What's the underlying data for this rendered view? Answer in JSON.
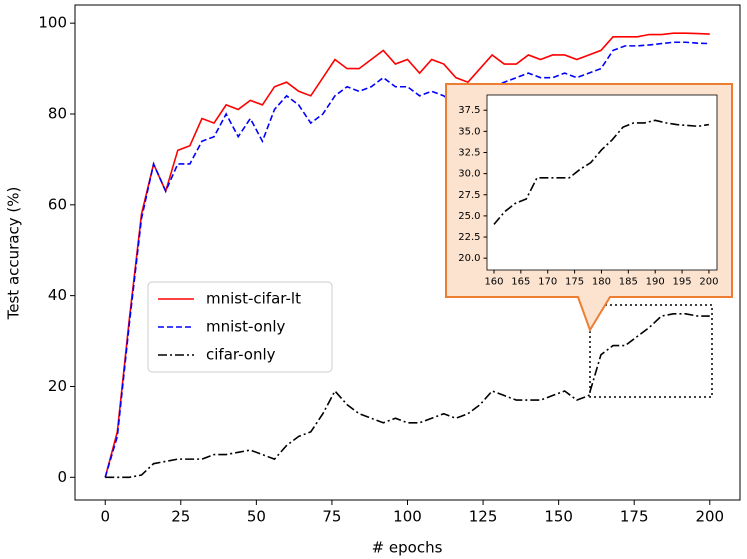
{
  "chart_data": [
    {
      "type": "line",
      "x_label": "# epochs",
      "y_label": "Test accuracy (%)",
      "x": [
        0,
        4,
        8,
        12,
        16,
        20,
        24,
        28,
        32,
        36,
        40,
        44,
        48,
        52,
        56,
        60,
        64,
        68,
        72,
        76,
        80,
        84,
        88,
        92,
        96,
        100,
        104,
        108,
        112,
        116,
        120,
        124,
        128,
        132,
        136,
        140,
        144,
        148,
        152,
        156,
        160,
        164,
        168,
        172,
        176,
        180,
        184,
        188,
        192,
        196,
        200
      ],
      "series": [
        {
          "name": "mnist-cifar-lt",
          "color": "#ff0000",
          "style": "solid",
          "values": [
            0,
            10,
            35,
            58,
            69,
            63,
            72,
            73,
            79,
            78,
            82,
            81,
            83,
            82,
            86,
            87,
            85,
            84,
            88,
            92,
            90,
            90,
            92,
            94,
            91,
            92,
            89,
            92,
            91,
            88,
            87,
            90,
            93,
            91,
            91,
            93,
            92,
            93,
            93,
            92,
            93,
            94,
            97,
            97,
            97,
            97.5,
            97.5,
            97.8,
            97.8,
            97.7,
            97.6
          ]
        },
        {
          "name": "mnist-only",
          "color": "#0000ff",
          "style": "dashed",
          "values": [
            0,
            9,
            34,
            57,
            69,
            63,
            69,
            69,
            74,
            75,
            80,
            75,
            79,
            74,
            81,
            84,
            82,
            78,
            80,
            84,
            86,
            85,
            86,
            88,
            86,
            86,
            84,
            85,
            84,
            82,
            84,
            82,
            86,
            87,
            88,
            89,
            88,
            88,
            89,
            88,
            89,
            90,
            94,
            95,
            95,
            95.2,
            95.5,
            95.8,
            95.8,
            95.6,
            95.5
          ]
        },
        {
          "name": "cifar-only",
          "color": "#000000",
          "style": "dashdot",
          "values": [
            0,
            0,
            0,
            0.5,
            3,
            3.5,
            4,
            4,
            4,
            5,
            5,
            5.5,
            6,
            5,
            4,
            7,
            9,
            10,
            14,
            19,
            16,
            14,
            13,
            12,
            13,
            12,
            12,
            13,
            14,
            13,
            14,
            16,
            19,
            18,
            17,
            17,
            17,
            18,
            19,
            17,
            18,
            27,
            29,
            29,
            31,
            33,
            35.5,
            36,
            36,
            35.5,
            35.5
          ]
        }
      ],
      "xlim": [
        -10,
        210
      ],
      "xticks": [
        0,
        25,
        50,
        75,
        100,
        125,
        150,
        175,
        200
      ],
      "ylim": [
        -5,
        104
      ],
      "yticks": [
        0,
        20,
        40,
        60,
        80,
        100
      ],
      "legend": "center left",
      "grid": false
    },
    {
      "type": "line",
      "x": [
        160,
        162,
        164,
        166,
        168,
        170,
        172,
        174,
        176,
        178,
        180,
        182,
        184,
        186,
        188,
        190,
        192,
        194,
        196,
        198,
        200
      ],
      "series": [
        {
          "color": "#000000",
          "style": "dashdot",
          "values": [
            24,
            25.5,
            26.5,
            27,
            29.5,
            29.5,
            29.5,
            29.5,
            30.5,
            31.3,
            32.8,
            34,
            35.5,
            36,
            36,
            36.3,
            36,
            35.8,
            35.7,
            35.6,
            35.8
          ]
        }
      ],
      "xlim": [
        158.7,
        201.5
      ],
      "xticks": [
        160,
        165,
        170,
        175,
        180,
        185,
        190,
        195,
        200
      ],
      "ylim": [
        18.6,
        39.3
      ],
      "yticks": [
        {
          "value": 20,
          "label": "20.0"
        },
        22.5,
        {
          "value": 25,
          "label": "25.0"
        },
        27.5,
        {
          "value": 30,
          "label": "30.0"
        },
        32.5,
        {
          "value": 35,
          "label": "35.0"
        },
        37.5
      ],
      "grid": false
    }
  ]
}
